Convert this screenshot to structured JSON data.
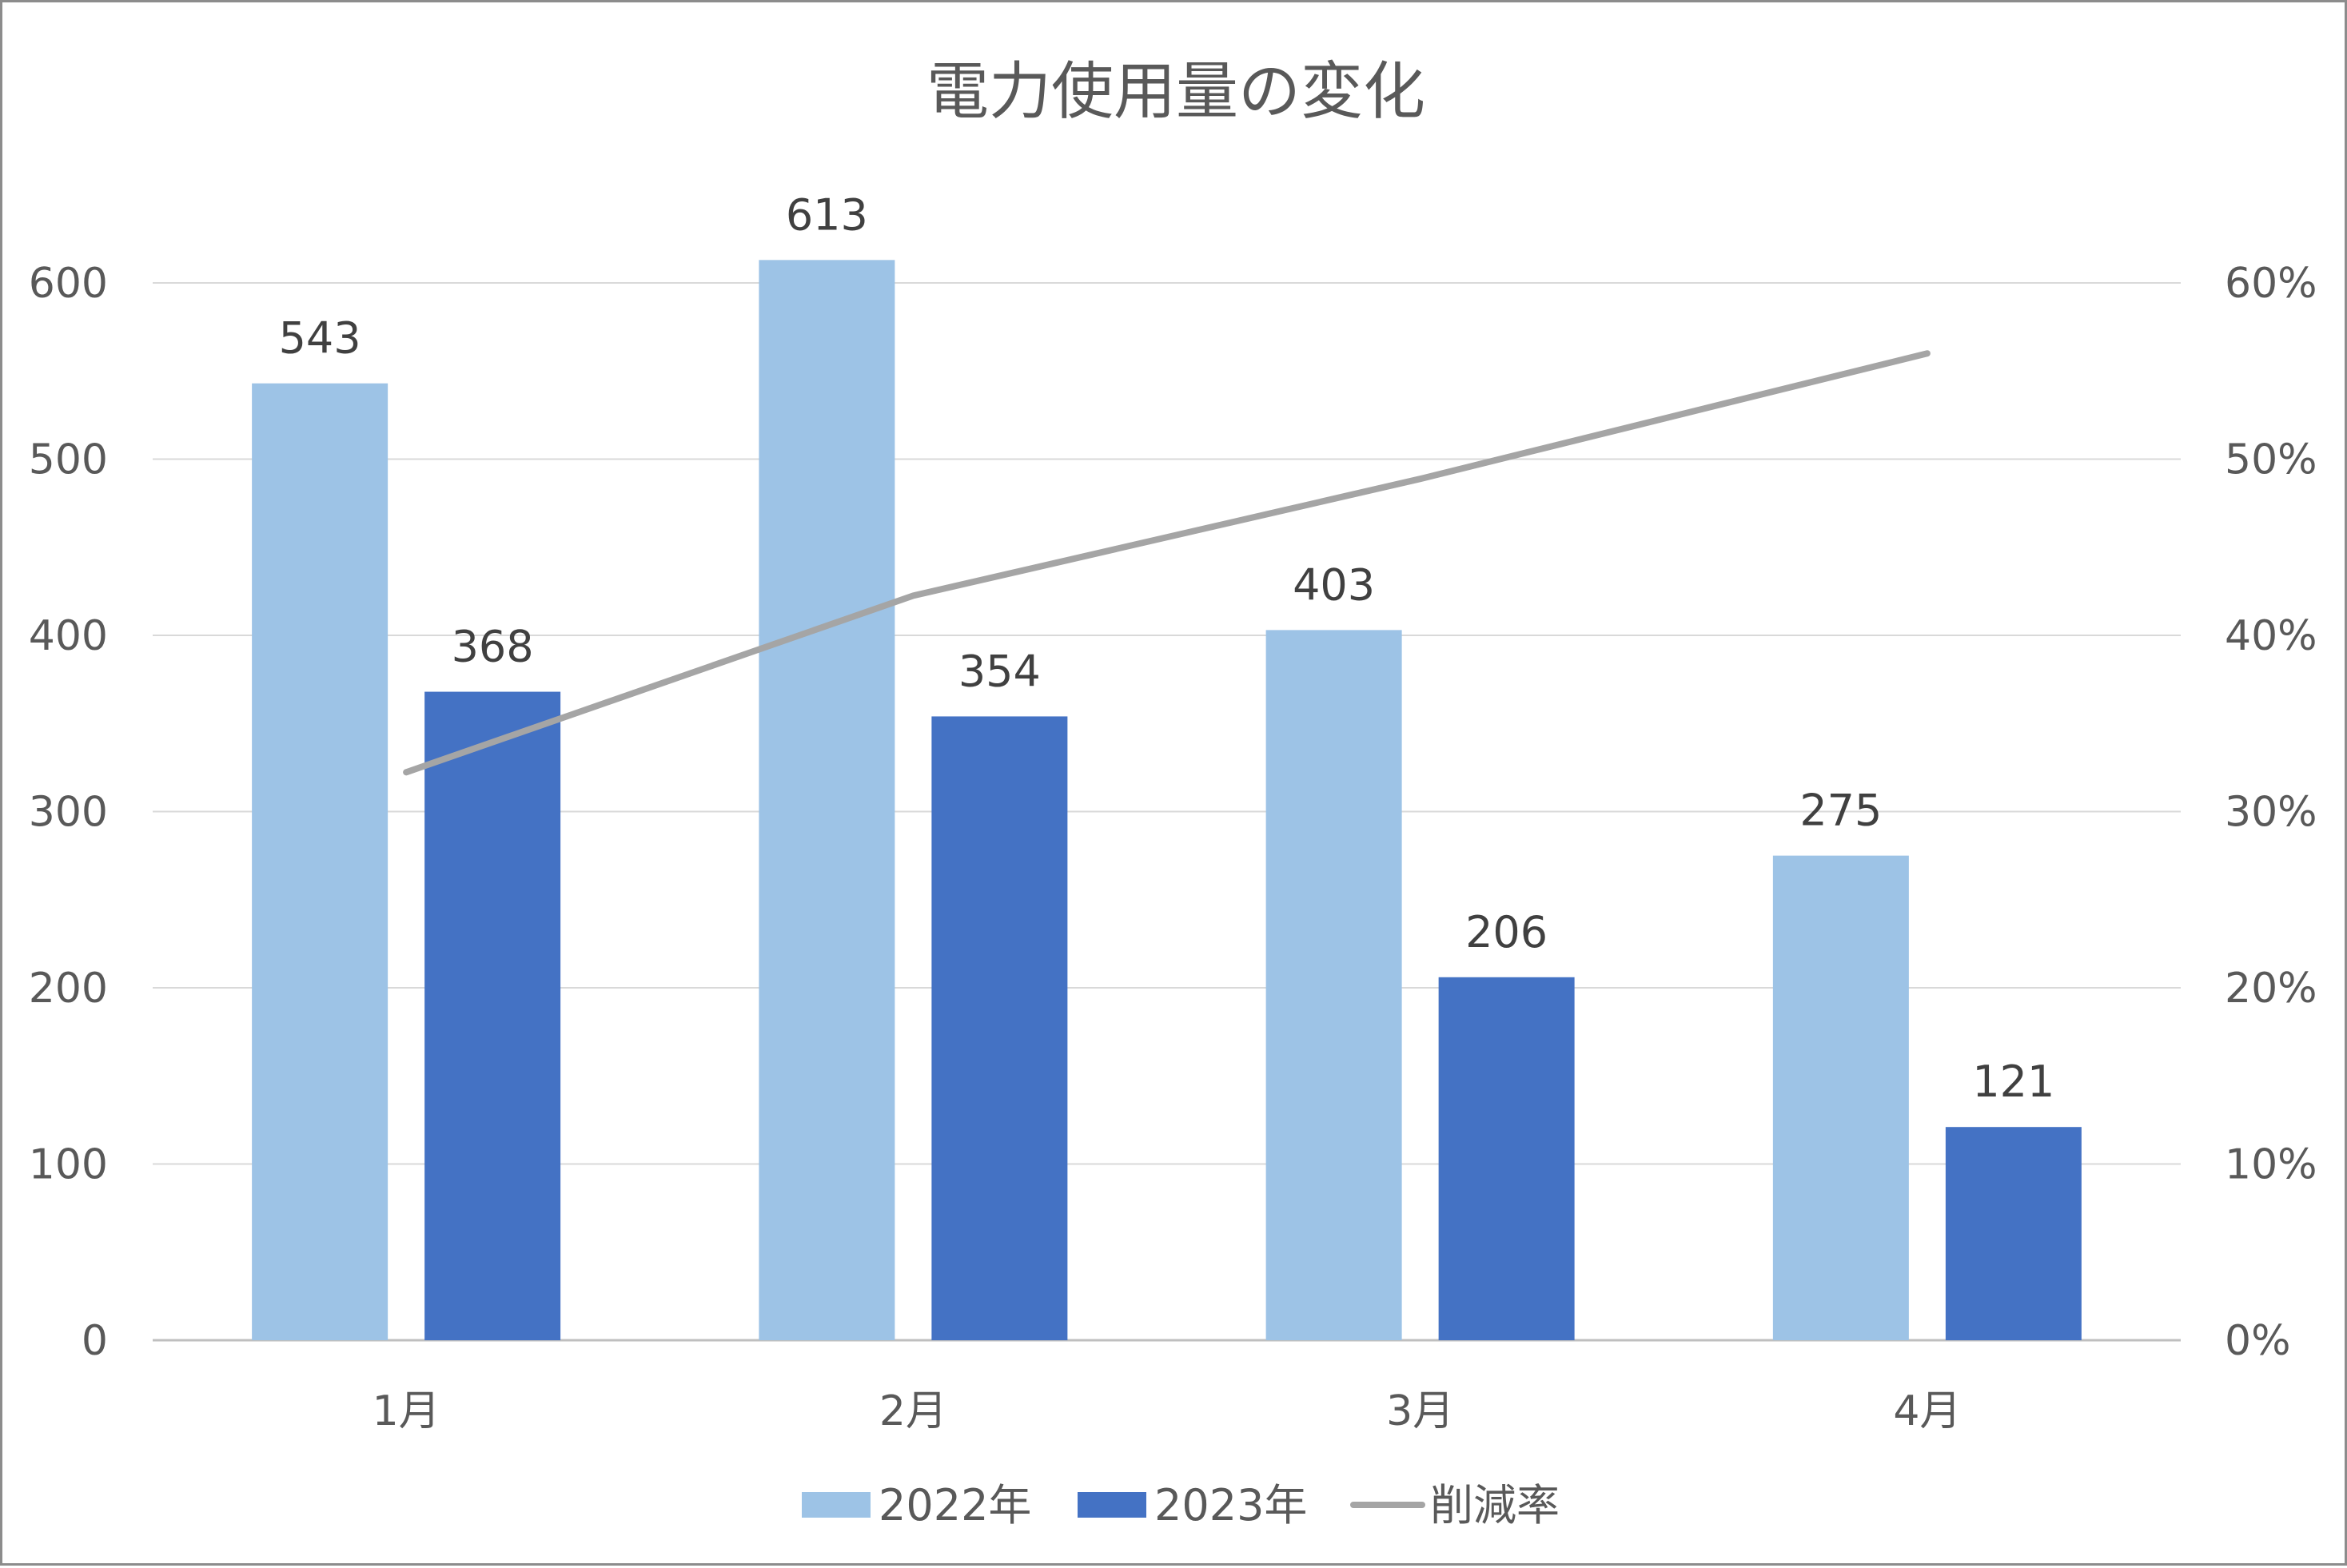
{
  "chart_data": {
    "type": "bar",
    "title": "電力使用量の変化",
    "categories": [
      "1月",
      "2月",
      "3月",
      "4月"
    ],
    "series": [
      {
        "name": "2022年",
        "type": "bar",
        "axis": "left",
        "color": "#9DC3E6",
        "values": [
          543,
          613,
          403,
          275
        ]
      },
      {
        "name": "2023年",
        "type": "bar",
        "axis": "left",
        "color": "#4472C4",
        "values": [
          368,
          354,
          206,
          121
        ]
      },
      {
        "name": "削減率",
        "type": "line",
        "axis": "right",
        "color": "#A5A5A5",
        "values": [
          0.3223,
          0.4225,
          0.4888,
          0.56
        ]
      }
    ],
    "y_left": {
      "min": 0,
      "max": 600,
      "ticks": [
        "0",
        "100",
        "200",
        "300",
        "400",
        "500",
        "600"
      ]
    },
    "y_right": {
      "min": 0,
      "max": 0.6,
      "ticks": [
        "0%",
        "10%",
        "20%",
        "30%",
        "40%",
        "50%",
        "60%"
      ]
    },
    "grid": true,
    "legend": "bottom"
  }
}
